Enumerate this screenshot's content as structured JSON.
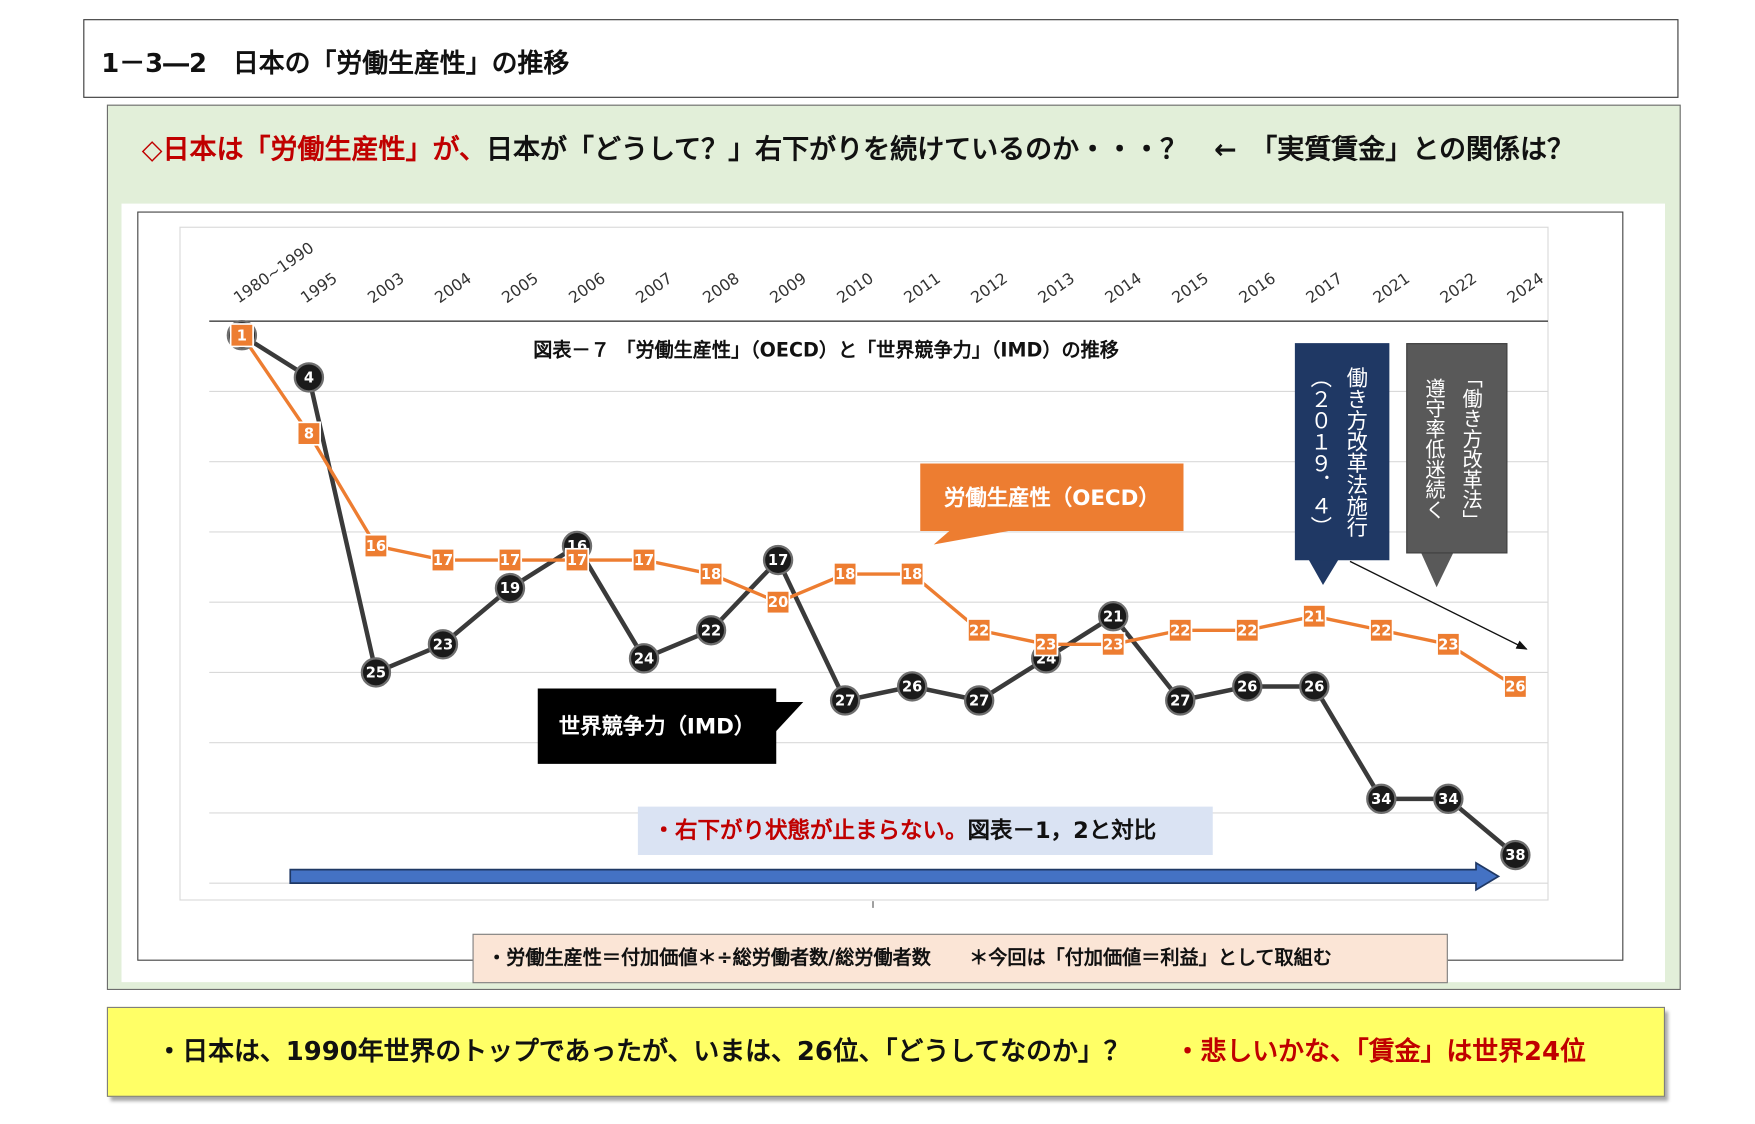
{
  "page": {
    "title": "1－3―2　日本の「労働生産性」の推移"
  },
  "headline": {
    "red": "◇日本は「労働生産性」が、",
    "black": "日本が「どうして？」右下がりを続けているのか・・・？　←　「実質賃金」との関係は？"
  },
  "chart_data": {
    "type": "line",
    "title": "図表－７ 「労働生産性」（OECD）と「世界競争力」（IMD）の推移",
    "categories": [
      "1980~1990",
      "1995",
      "2003",
      "2004",
      "2005",
      "2006",
      "2007",
      "2008",
      "2009",
      "2010",
      "2011",
      "2012",
      "2013",
      "2014",
      "2015",
      "2016",
      "2017",
      "2021",
      "2022",
      "2024"
    ],
    "series": [
      {
        "name": "労働生産性（OECD）",
        "color": "#ed7d31",
        "marker": "square",
        "values": [
          1,
          8,
          16,
          17,
          17,
          17,
          17,
          18,
          20,
          18,
          18,
          22,
          23,
          23,
          22,
          22,
          21,
          22,
          23,
          26
        ]
      },
      {
        "name": "世界競争力（IMD）",
        "color": "#1a1a1a",
        "marker": "circle",
        "values": [
          1,
          4,
          25,
          23,
          19,
          16,
          24,
          22,
          17,
          27,
          26,
          27,
          24,
          21,
          27,
          26,
          26,
          34,
          34,
          38
        ]
      }
    ],
    "ylim": [
      0,
      40
    ],
    "y_inverted": true,
    "grid": true,
    "x_tick_position": "top"
  },
  "annotations": {
    "law_enforced": {
      "line1": "働き方改革法施行",
      "line2": "（２０１９．４）"
    },
    "compliance": {
      "line1": "「働き方改革法」",
      "line2": "遵守率低迷続く"
    },
    "trend_note": {
      "red": "・右下がり状態が止まらない。",
      "black": "図表－1，2と対比"
    },
    "definition": "・労働生産性＝付加価値＊÷総労働者数/総労働者数　　＊今回は「付加価値＝利益」として取組む"
  },
  "summary": {
    "black": "・日本は、1990年世界のトップであったが、いまは、26位、「どうしてなのか」？",
    "red": "・悲しいかな、「賃金」は世界24位"
  },
  "colors": {
    "accent_red": "#c00000",
    "panel_green": "#e2efd9",
    "navy": "#1f3864",
    "gray": "#595959",
    "arrow_blue": "#4472c4",
    "note_blue": "#dae3f3",
    "note_peach": "#fbe5d6",
    "summary_yellow": "#ffff66"
  }
}
